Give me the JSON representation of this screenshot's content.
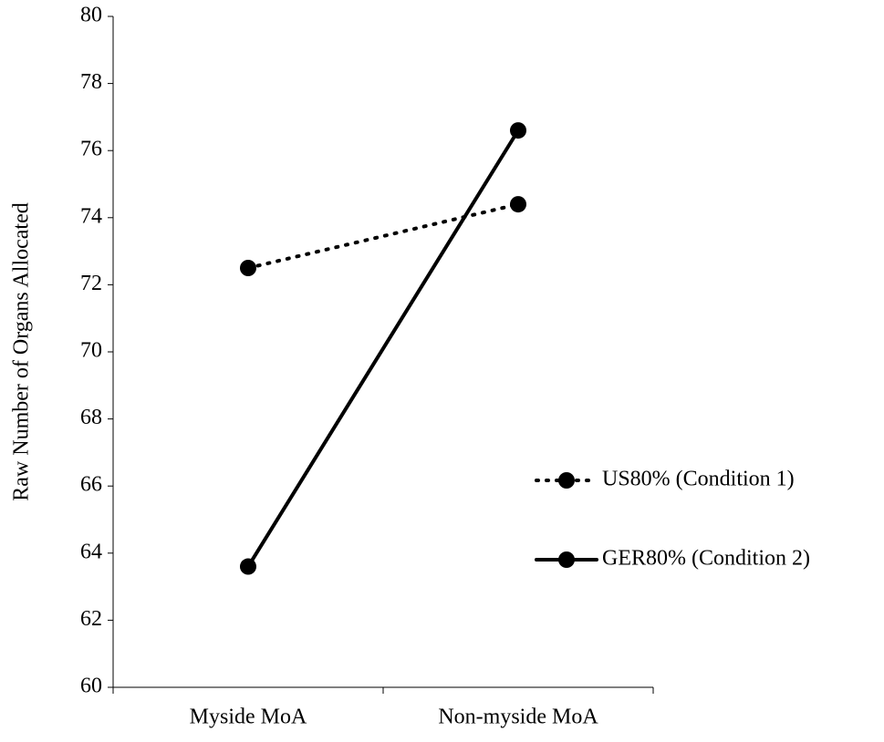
{
  "chart_data": {
    "type": "line",
    "y_label": "Raw Number of Organs Allocated",
    "categories": [
      "Myside MoA",
      "Non-myside MoA"
    ],
    "series": [
      {
        "name": "US80% (Condition 1)",
        "color": "#000000",
        "line_style": "dotted",
        "values": [
          72.5,
          74.4
        ]
      },
      {
        "name": "GER80% (Condition 2)",
        "color": "#000000",
        "line_style": "solid",
        "values": [
          63.6,
          76.6
        ]
      }
    ],
    "ylim": [
      60,
      80
    ],
    "yticks": [
      60,
      62,
      64,
      66,
      68,
      70,
      72,
      74,
      76,
      78,
      80
    ],
    "grid": false,
    "legend": "right"
  }
}
